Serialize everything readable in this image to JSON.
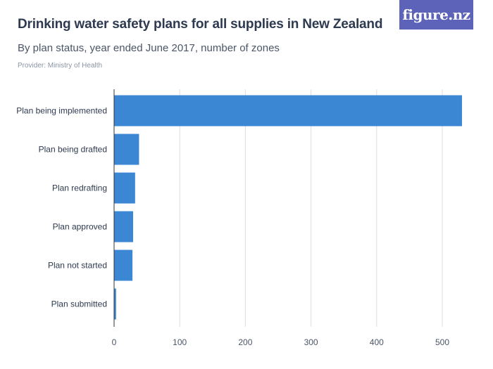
{
  "header": {
    "title": "Drinking water safety plans for all supplies in New Zealand",
    "subtitle": "By plan status, year ended June 2017, number of zones",
    "provider": "Provider: Ministry of Health",
    "logo_text": "figure.nz"
  },
  "colors": {
    "bar": "#3b87d4",
    "grid": "#dddddd",
    "logo_bg": "#5c63b8"
  },
  "chart_data": {
    "type": "bar",
    "orientation": "horizontal",
    "title": "Drinking water safety plans for all supplies in New Zealand",
    "subtitle": "By plan status, year ended June 2017, number of zones",
    "xlabel": "",
    "ylabel": "",
    "categories": [
      "Plan being implemented",
      "Plan being drafted",
      "Plan redrafting",
      "Plan approved",
      "Plan not started",
      "Plan submitted"
    ],
    "values": [
      530,
      38,
      32,
      29,
      28,
      3
    ],
    "xlim": [
      0,
      550
    ],
    "xticks": [
      "0",
      "100",
      "200",
      "300",
      "400",
      "500"
    ],
    "grid": true,
    "legend": "none"
  }
}
